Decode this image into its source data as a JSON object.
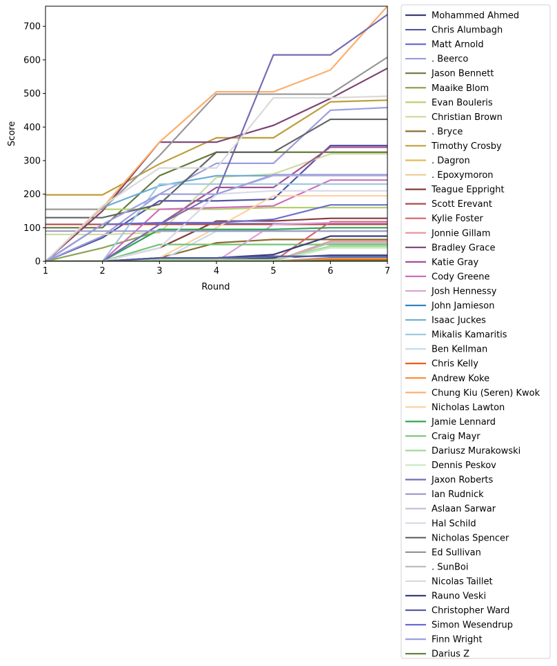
{
  "chart_data": {
    "type": "line",
    "title": "",
    "xlabel": "Round",
    "ylabel": "Score",
    "xlim": [
      1,
      7
    ],
    "ylim": [
      0,
      760
    ],
    "x": [
      1,
      2,
      3,
      4,
      5,
      6,
      7
    ],
    "xticks": [
      1,
      2,
      3,
      4,
      5,
      6,
      7
    ],
    "yticks": [
      0,
      100,
      200,
      300,
      400,
      500,
      600,
      700
    ],
    "grid": false,
    "legend_placement": "outside-right",
    "series": [
      {
        "name": "Mohammed Ahmed",
        "color": "#393b79",
        "values": [
          0,
          0,
          5,
          5,
          10,
          18,
          18
        ]
      },
      {
        "name": "Chris Alumbagh",
        "color": "#5254a3",
        "values": [
          0,
          70,
          180,
          180,
          185,
          345,
          345
        ]
      },
      {
        "name": "Matt Arnold",
        "color": "#6b6ecf",
        "values": [
          0,
          110,
          112,
          112,
          112,
          112,
          112
        ]
      },
      {
        "name": ". Beerco",
        "color": "#9c9ede",
        "values": [
          0,
          75,
          200,
          292,
          292,
          450,
          458
        ]
      },
      {
        "name": "Jason Bennett",
        "color": "#637939",
        "values": [
          100,
          100,
          255,
          325,
          325,
          325,
          325
        ]
      },
      {
        "name": "Maaike Blom",
        "color": "#8ca252",
        "values": [
          0,
          40,
          90,
          90,
          90,
          90,
          90
        ]
      },
      {
        "name": "Evan Bouleris",
        "color": "#b5cf6b",
        "values": [
          155,
          155,
          155,
          155,
          160,
          160,
          160
        ]
      },
      {
        "name": "Christian Brown",
        "color": "#cedb9c",
        "values": [
          80,
          80,
          85,
          250,
          260,
          320,
          320
        ]
      },
      {
        "name": ". Bryce",
        "color": "#8c6d31",
        "values": [
          0,
          0,
          10,
          55,
          65,
          65,
          65
        ]
      },
      {
        "name": "Timothy Crosby",
        "color": "#bd9e39",
        "values": [
          198,
          198,
          290,
          368,
          368,
          475,
          480
        ]
      },
      {
        "name": ". Dagron",
        "color": "#e7ba52",
        "values": [
          0,
          0,
          0,
          0,
          0,
          2,
          2
        ]
      },
      {
        "name": ". Epoxymoron",
        "color": "#e7cb94",
        "values": [
          0,
          0,
          0,
          0,
          0,
          3,
          3
        ]
      },
      {
        "name": "Teague Eppright",
        "color": "#843c39",
        "values": [
          0,
          0,
          40,
          120,
          120,
          128,
          128
        ]
      },
      {
        "name": "Scott Erevant",
        "color": "#ad494a",
        "values": [
          110,
          110,
          110,
          110,
          110,
          110,
          110
        ]
      },
      {
        "name": "Kylie Foster",
        "color": "#d6616b",
        "values": [
          0,
          0,
          0,
          0,
          0,
          118,
          118
        ]
      },
      {
        "name": "Jonnie Gillam",
        "color": "#e7969c",
        "values": [
          0,
          0,
          0,
          0,
          0,
          60,
          60
        ]
      },
      {
        "name": "Bradley Grace",
        "color": "#7b4173",
        "values": [
          0,
          150,
          355,
          355,
          405,
          485,
          575
        ]
      },
      {
        "name": "Katie Gray",
        "color": "#a55194",
        "values": [
          0,
          0,
          110,
          220,
          220,
          340,
          340
        ]
      },
      {
        "name": "Cody Greene",
        "color": "#ce6dbd",
        "values": [
          0,
          0,
          155,
          160,
          165,
          242,
          242
        ]
      },
      {
        "name": "Josh Hennessy",
        "color": "#de9ed6",
        "values": [
          0,
          0,
          0,
          0,
          110,
          115,
          115
        ]
      },
      {
        "name": "John Jamieson",
        "color": "#3182bd",
        "values": [
          0,
          0,
          0,
          0,
          0,
          10,
          10
        ]
      },
      {
        "name": "Isaac Juckes",
        "color": "#6baed6",
        "values": [
          0,
          160,
          225,
          255,
          255,
          255,
          255
        ]
      },
      {
        "name": "Mikalis Kamaritis",
        "color": "#9ecae1",
        "values": [
          0,
          0,
          230,
          230,
          230,
          230,
          230
        ]
      },
      {
        "name": "Ben Kellman",
        "color": "#c6dbef",
        "values": [
          0,
          0,
          0,
          90,
          90,
          90,
          90
        ]
      },
      {
        "name": "Chris Kelly",
        "color": "#e6550d",
        "values": [
          0,
          0,
          0,
          0,
          0,
          5,
          5
        ]
      },
      {
        "name": "Andrew Koke",
        "color": "#fd8d3c",
        "values": [
          0,
          0,
          0,
          0,
          0,
          8,
          8
        ]
      },
      {
        "name": "Chung Kiu (Seren) Kwok",
        "color": "#fdae6b",
        "values": [
          0,
          160,
          355,
          505,
          505,
          570,
          760
        ]
      },
      {
        "name": "Nicholas Lawton",
        "color": "#fdd0a2",
        "values": [
          0,
          0,
          10,
          100,
          195,
          195,
          195
        ]
      },
      {
        "name": "Jamie Lennard",
        "color": "#31a354",
        "values": [
          0,
          0,
          95,
          95,
          95,
          100,
          100
        ]
      },
      {
        "name": "Craig Mayr",
        "color": "#74c476",
        "values": [
          0,
          0,
          50,
          50,
          50,
          50,
          50
        ]
      },
      {
        "name": "Dariusz Murakowski",
        "color": "#a1d99b",
        "values": [
          0,
          0,
          5,
          5,
          5,
          45,
          45
        ]
      },
      {
        "name": "Dennis Peskov",
        "color": "#c7e9c0",
        "values": [
          0,
          0,
          0,
          0,
          0,
          40,
          40
        ]
      },
      {
        "name": "Jaxon Roberts",
        "color": "#756bb1",
        "values": [
          0,
          0,
          110,
          200,
          615,
          615,
          735
        ]
      },
      {
        "name": "Ian Rudnick",
        "color": "#9e9ac8",
        "values": [
          90,
          90,
          90,
          90,
          90,
          90,
          90
        ]
      },
      {
        "name": "Aslaan Sarwar",
        "color": "#bcbddc",
        "values": [
          0,
          0,
          40,
          200,
          255,
          255,
          255
        ]
      },
      {
        "name": "Hal Schild",
        "color": "#dadaeb",
        "values": [
          0,
          0,
          40,
          200,
          210,
          210,
          210
        ]
      },
      {
        "name": "Nicholas Spencer",
        "color": "#636363",
        "values": [
          130,
          130,
          170,
          325,
          325,
          423,
          423
        ]
      },
      {
        "name": "Ed Sullivan",
        "color": "#969696",
        "values": [
          155,
          155,
          315,
          498,
          498,
          498,
          608
        ]
      },
      {
        "name": ". SunBoi",
        "color": "#bdbdbd",
        "values": [
          0,
          0,
          0,
          0,
          0,
          55,
          55
        ]
      },
      {
        "name": "Nicolas Taillet",
        "color": "#d9d9d9",
        "values": [
          0,
          165,
          278,
          278,
          487,
          487,
          492
        ]
      },
      {
        "name": "Rauno Veski",
        "color": "#393b79",
        "values": [
          0,
          0,
          10,
          10,
          20,
          75,
          75
        ]
      },
      {
        "name": "Christopher Ward",
        "color": "#5254a3",
        "values": [
          0,
          0,
          10,
          10,
          15,
          15,
          15
        ]
      },
      {
        "name": "Simon Wesendrup",
        "color": "#6b6ecf",
        "values": [
          0,
          110,
          115,
          115,
          125,
          168,
          168
        ]
      },
      {
        "name": "Finn Wright",
        "color": "#9c9ede",
        "values": [
          0,
          110,
          200,
          200,
          258,
          258,
          258
        ]
      },
      {
        "name": "Darius Z",
        "color": "#637939",
        "values": [
          0,
          0,
          0,
          0,
          0,
          2,
          2
        ]
      }
    ]
  }
}
